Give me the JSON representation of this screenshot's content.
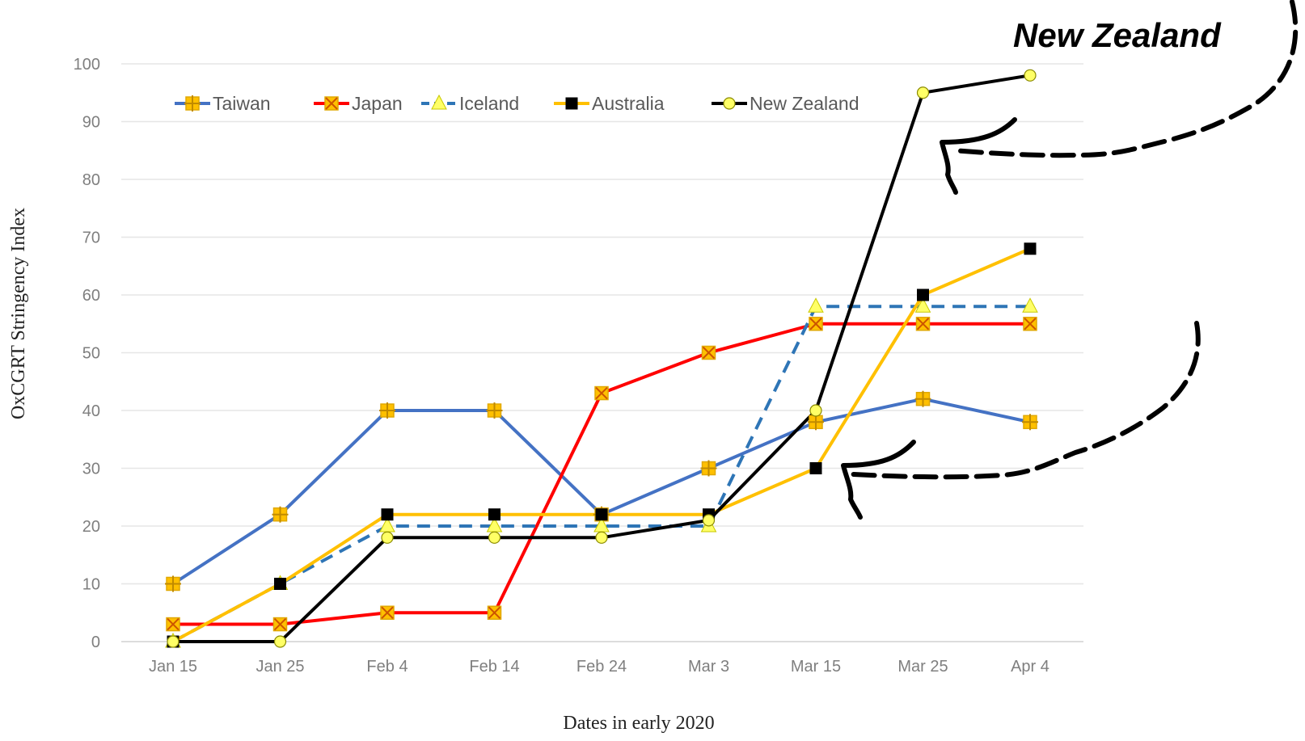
{
  "chart_data": {
    "type": "line",
    "categories": [
      "Jan 15",
      "Jan 25",
      "Feb 4",
      "Feb 14",
      "Feb 24",
      "Mar 3",
      "Mar 15",
      "Mar 25",
      "Apr 4"
    ],
    "series": [
      {
        "name": "Taiwan",
        "values": [
          10,
          22,
          40,
          40,
          22,
          30,
          38,
          42,
          38
        ],
        "color": "#4472c4",
        "marker": "square-cross",
        "marker_fill": "#ffc000",
        "dashed": false
      },
      {
        "name": "Japan",
        "values": [
          3,
          3,
          5,
          5,
          43,
          50,
          55,
          55,
          55
        ],
        "color": "#ff0000",
        "marker": "asterisk",
        "marker_fill": "#ffc000",
        "dashed": false
      },
      {
        "name": "Iceland",
        "values": [
          0,
          10,
          20,
          20,
          20,
          20,
          58,
          58,
          58
        ],
        "color": "#2e75b6",
        "marker": "triangle",
        "marker_fill": "#ffff66",
        "dashed": true
      },
      {
        "name": "Australia",
        "values": [
          0,
          10,
          22,
          22,
          22,
          22,
          30,
          60,
          68
        ],
        "color": "#ffc000",
        "marker": "square",
        "marker_fill": "#000000",
        "dashed": false
      },
      {
        "name": "New Zealand",
        "values": [
          0,
          0,
          18,
          18,
          18,
          21,
          40,
          95,
          98
        ],
        "color": "#000000",
        "marker": "circle",
        "marker_fill": "#ffff66",
        "dashed": false
      }
    ],
    "title": "",
    "xlabel": "Dates in early 2020",
    "ylabel": "OxCGRT Stringency  Index",
    "ylim": [
      0,
      100
    ],
    "yticks": [
      0,
      10,
      20,
      30,
      40,
      50,
      60,
      70,
      80,
      90,
      100
    ],
    "grid": true,
    "legend_position": "top-left",
    "annotation": "New Zealand"
  }
}
